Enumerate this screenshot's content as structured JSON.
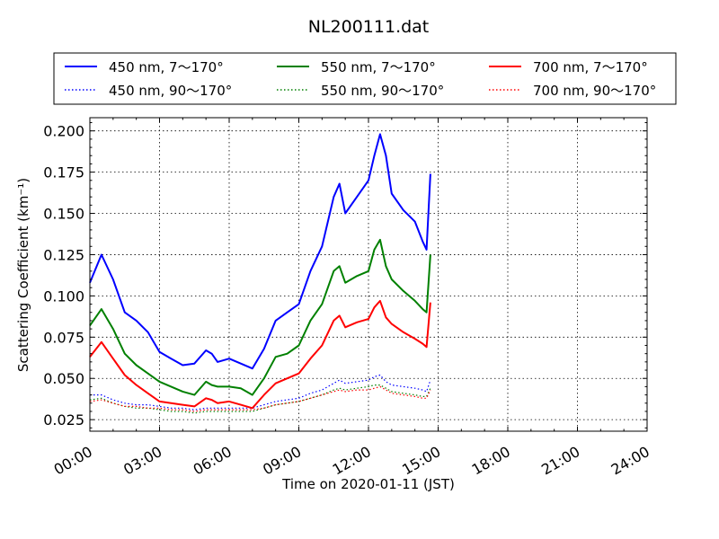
{
  "chart_data": {
    "type": "line",
    "title": "NL200111.dat",
    "xlabel": "Time on 2020-01-11 (JST)",
    "ylabel": "Scattering Coefficient (km⁻¹)",
    "xlim": [
      "00:00",
      "24:00"
    ],
    "ylim": [
      0.018,
      0.208
    ],
    "x_tick_labels": [
      "00:00",
      "03:00",
      "06:00",
      "09:00",
      "12:00",
      "15:00",
      "18:00",
      "21:00",
      "24:00"
    ],
    "y_tick_labels": [
      "0.025",
      "0.050",
      "0.075",
      "0.100",
      "0.125",
      "0.150",
      "0.175",
      "0.200"
    ],
    "grid": true,
    "legend_position": "top, outside the axes",
    "x": [
      "00:00",
      "00:30",
      "01:00",
      "01:30",
      "02:00",
      "02:30",
      "03:00",
      "03:30",
      "04:00",
      "04:30",
      "05:00",
      "05:15",
      "05:30",
      "06:00",
      "06:30",
      "07:00",
      "07:30",
      "08:00",
      "08:30",
      "09:00",
      "09:30",
      "10:00",
      "10:30",
      "10:45",
      "11:00",
      "11:30",
      "12:00",
      "12:15",
      "12:30",
      "12:45",
      "13:00",
      "13:30",
      "14:00",
      "14:20",
      "14:30",
      "14:40"
    ],
    "series": [
      {
        "name": "450 nm, 7～170°",
        "color": "#0000ff",
        "style": "solid",
        "values": [
          0.108,
          0.125,
          0.11,
          0.09,
          0.085,
          0.078,
          0.066,
          0.062,
          0.058,
          0.059,
          0.067,
          0.065,
          0.06,
          0.062,
          0.059,
          0.056,
          0.068,
          0.085,
          0.09,
          0.095,
          0.115,
          0.13,
          0.16,
          0.168,
          0.15,
          0.16,
          0.17,
          0.185,
          0.198,
          0.185,
          0.162,
          0.152,
          0.145,
          0.133,
          0.128,
          0.174
        ]
      },
      {
        "name": "550 nm, 7～170°",
        "color": "#008000",
        "style": "solid",
        "values": [
          0.082,
          0.092,
          0.08,
          0.065,
          0.058,
          0.053,
          0.048,
          0.045,
          0.042,
          0.04,
          0.048,
          0.046,
          0.045,
          0.045,
          0.044,
          0.04,
          0.05,
          0.063,
          0.065,
          0.07,
          0.085,
          0.095,
          0.115,
          0.118,
          0.108,
          0.112,
          0.115,
          0.128,
          0.134,
          0.118,
          0.11,
          0.103,
          0.097,
          0.092,
          0.09,
          0.125
        ]
      },
      {
        "name": "700 nm, 7～170°",
        "color": "#ff0000",
        "style": "solid",
        "values": [
          0.063,
          0.072,
          0.062,
          0.052,
          0.046,
          0.041,
          0.036,
          0.035,
          0.034,
          0.033,
          0.038,
          0.037,
          0.035,
          0.036,
          0.034,
          0.032,
          0.04,
          0.047,
          0.05,
          0.053,
          0.062,
          0.07,
          0.085,
          0.088,
          0.081,
          0.084,
          0.086,
          0.093,
          0.097,
          0.087,
          0.083,
          0.078,
          0.074,
          0.071,
          0.069,
          0.096
        ]
      },
      {
        "name": "450 nm, 90～170°",
        "color": "#0000ff",
        "style": "dotted",
        "values": [
          0.04,
          0.04,
          0.037,
          0.035,
          0.034,
          0.034,
          0.033,
          0.032,
          0.032,
          0.031,
          0.032,
          0.032,
          0.032,
          0.032,
          0.032,
          0.032,
          0.034,
          0.036,
          0.037,
          0.038,
          0.041,
          0.043,
          0.047,
          0.049,
          0.047,
          0.048,
          0.049,
          0.051,
          0.052,
          0.048,
          0.046,
          0.045,
          0.044,
          0.043,
          0.042,
          0.049
        ]
      },
      {
        "name": "550 nm, 90～170°",
        "color": "#008000",
        "style": "dotted",
        "values": [
          0.037,
          0.038,
          0.035,
          0.033,
          0.032,
          0.032,
          0.031,
          0.03,
          0.03,
          0.029,
          0.03,
          0.03,
          0.03,
          0.03,
          0.03,
          0.03,
          0.032,
          0.034,
          0.035,
          0.036,
          0.038,
          0.04,
          0.043,
          0.044,
          0.043,
          0.044,
          0.045,
          0.046,
          0.046,
          0.044,
          0.042,
          0.041,
          0.04,
          0.039,
          0.039,
          0.044
        ]
      },
      {
        "name": "700 nm, 90～170°",
        "color": "#ff0000",
        "style": "dotted",
        "values": [
          0.036,
          0.037,
          0.035,
          0.033,
          0.033,
          0.032,
          0.032,
          0.031,
          0.031,
          0.03,
          0.031,
          0.031,
          0.031,
          0.031,
          0.031,
          0.031,
          0.032,
          0.034,
          0.035,
          0.036,
          0.038,
          0.04,
          0.042,
          0.043,
          0.042,
          0.043,
          0.043,
          0.044,
          0.045,
          0.043,
          0.041,
          0.04,
          0.039,
          0.038,
          0.038,
          0.043
        ]
      }
    ]
  }
}
